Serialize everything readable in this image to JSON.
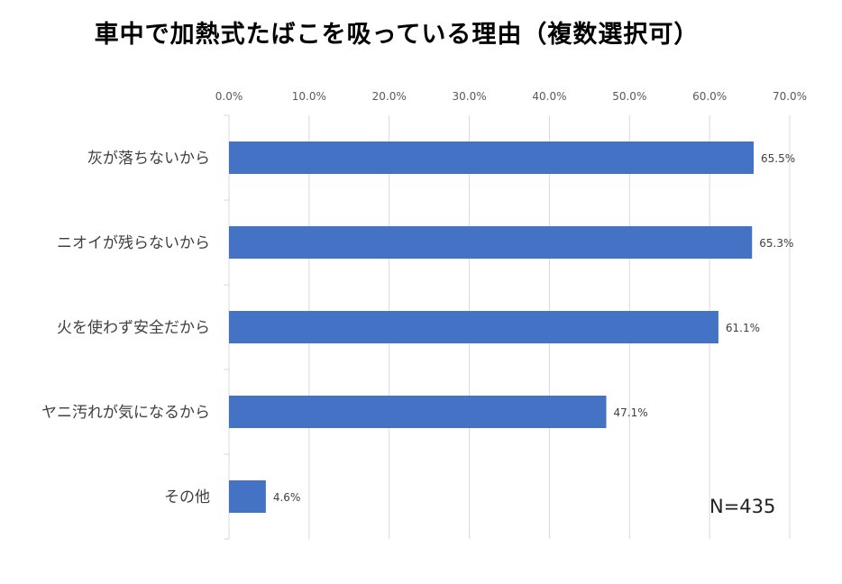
{
  "chart_data": {
    "type": "bar",
    "orientation": "horizontal",
    "title": "車中で加熱式たばこを吸っている理由（複数選択可）",
    "categories": [
      "灰が落ちないから",
      "ニオイが残らないから",
      "火を使わず安全だから",
      "ヤニ汚れが気になるから",
      "その他"
    ],
    "values": [
      65.5,
      65.3,
      61.1,
      47.1,
      4.6
    ],
    "data_labels": [
      "65.5%",
      "65.3%",
      "61.1%",
      "47.1%",
      "4.6%"
    ],
    "xlim": [
      0,
      70
    ],
    "xticks": [
      "0.0%",
      "10.0%",
      "20.0%",
      "30.0%",
      "40.0%",
      "50.0%",
      "60.0%",
      "70.0%"
    ],
    "xaxis_position": "top",
    "grid": true,
    "legend": "none",
    "bar_color": "#4472C4",
    "note": "N=435"
  }
}
